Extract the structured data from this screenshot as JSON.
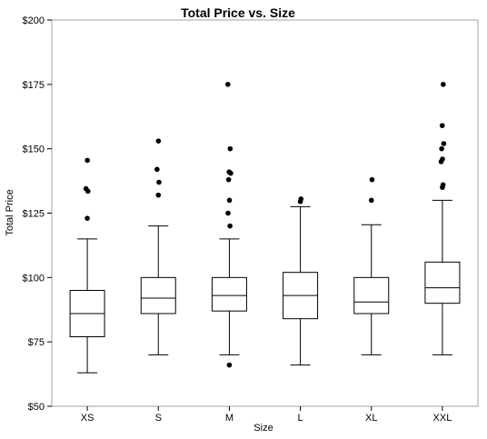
{
  "chart_data": {
    "type": "boxplot",
    "title": "Total Price vs. Size",
    "xlabel": "Size",
    "ylabel": "Total Price",
    "ylim": [
      50,
      200
    ],
    "yticks": [
      50,
      75,
      100,
      125,
      150,
      175,
      200
    ],
    "ytick_labels": [
      "$50",
      "$75",
      "$100",
      "$125",
      "$150",
      "$175",
      "$200"
    ],
    "grid": false,
    "categories": [
      "XS",
      "S",
      "M",
      "L",
      "XL",
      "XXL"
    ],
    "boxes": [
      {
        "category": "XS",
        "whisker_low": 63,
        "q1": 77,
        "median": 86,
        "q3": 95,
        "whisker_high": 115,
        "outliers": [
          123,
          133.5,
          134.5,
          145.5
        ]
      },
      {
        "category": "S",
        "whisker_low": 70,
        "q1": 86,
        "median": 92,
        "q3": 100,
        "whisker_high": 120,
        "outliers": [
          132,
          137,
          142,
          153
        ]
      },
      {
        "category": "M",
        "whisker_low": 70,
        "q1": 87,
        "median": 93,
        "q3": 100,
        "whisker_high": 115,
        "outliers": [
          66,
          120,
          125,
          130,
          138,
          140.5,
          141,
          150,
          175
        ]
      },
      {
        "category": "L",
        "whisker_low": 66,
        "q1": 84,
        "median": 93,
        "q3": 102,
        "whisker_high": 127.5,
        "outliers": [
          129.5,
          130.5
        ]
      },
      {
        "category": "XL",
        "whisker_low": 70,
        "q1": 86,
        "median": 90.5,
        "q3": 100,
        "whisker_high": 120.5,
        "outliers": [
          130,
          138
        ]
      },
      {
        "category": "XXL",
        "whisker_low": 70,
        "q1": 90,
        "median": 96,
        "q3": 106,
        "whisker_high": 130,
        "outliers": [
          135,
          136,
          145,
          146,
          150,
          152,
          159,
          175
        ]
      }
    ]
  }
}
